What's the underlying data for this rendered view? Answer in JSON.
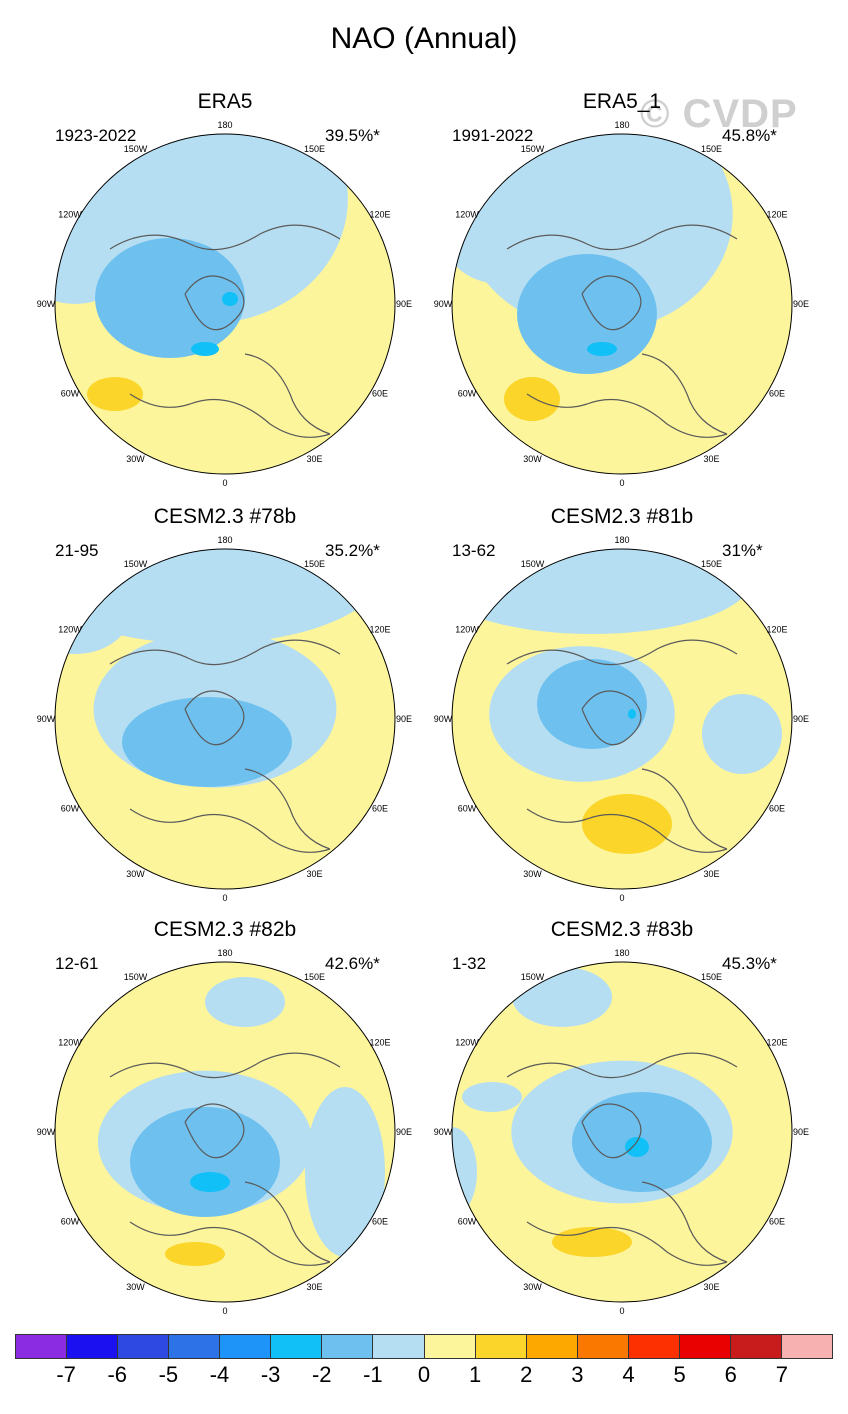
{
  "title": "NAO (Annual)",
  "watermark": "© CVDP",
  "colors": {
    "ocean_bg": "#fcf59b",
    "neg1": "#b6def2",
    "neg2": "#6ec1ef",
    "neg3": "#10c0f7",
    "pos1": "#fbd52a",
    "land_outline": "#5a5a5a"
  },
  "longitude_labels": [
    "180",
    "150E",
    "120E",
    "90E",
    "60E",
    "30E",
    "0",
    "30W",
    "60W",
    "90W",
    "120W",
    "150W"
  ],
  "panels": [
    {
      "title": "ERA5",
      "years": "1923-2022",
      "percent": "39.5%*"
    },
    {
      "title": "ERA5_1",
      "years": "1991-2022",
      "percent": "45.8%*"
    },
    {
      "title": "CESM2.3 #78b",
      "years": "21-95",
      "percent": "35.2%*"
    },
    {
      "title": "CESM2.3 #81b",
      "years": "13-62",
      "percent": "31%*"
    },
    {
      "title": "CESM2.3 #82b",
      "years": "12-61",
      "percent": "42.6%*"
    },
    {
      "title": "CESM2.3 #83b",
      "years": "1-32",
      "percent": "45.3%*"
    }
  ],
  "colorbar": {
    "colors": [
      "#8b2be2",
      "#1a10f0",
      "#2e48e2",
      "#2e72e8",
      "#1e94f8",
      "#10c0f7",
      "#6ec1ef",
      "#b6def2",
      "#fcf59b",
      "#fbd52a",
      "#fca800",
      "#fb7800",
      "#fc3000",
      "#e90000",
      "#c81c1c",
      "#f7b1b1"
    ],
    "labels": [
      "-7",
      "-6",
      "-5",
      "-4",
      "-3",
      "-2",
      "-1",
      "0",
      "1",
      "2",
      "3",
      "4",
      "5",
      "6",
      "7"
    ]
  }
}
